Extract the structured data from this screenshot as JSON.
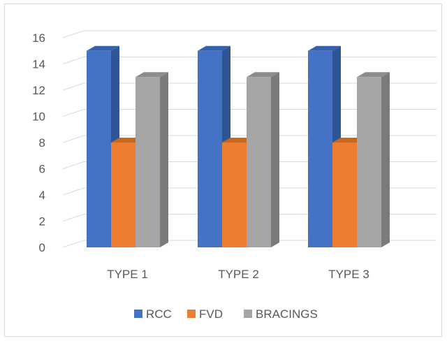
{
  "chart_data": {
    "type": "bar",
    "categories": [
      "TYPE 1",
      "TYPE 2",
      "TYPE 3"
    ],
    "series": [
      {
        "name": "RCC",
        "values": [
          15,
          15,
          15
        ],
        "color": "#4472c4",
        "side_color": "#2f5597",
        "top_color": "#3561ad"
      },
      {
        "name": "FVD",
        "values": [
          8,
          8,
          8
        ],
        "color": "#ed7d31",
        "side_color": "#ae5a21",
        "top_color": "#c8681f"
      },
      {
        "name": "BRACINGS",
        "values": [
          13,
          13,
          13
        ],
        "color": "#a5a5a5",
        "side_color": "#7b7b7b",
        "top_color": "#8c8c8c"
      }
    ],
    "ylim": [
      0,
      16
    ],
    "yticks": [
      "0",
      "2",
      "4",
      "6",
      "8",
      "10",
      "12",
      "14",
      "16"
    ],
    "grid": true,
    "legend_position": "bottom",
    "title": "",
    "xlabel": "",
    "ylabel": ""
  }
}
